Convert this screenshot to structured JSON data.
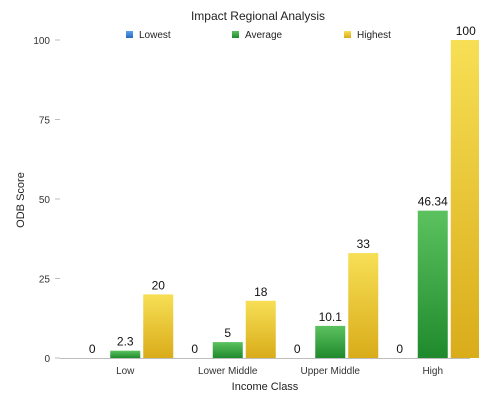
{
  "chart_data": {
    "type": "bar",
    "title": "Impact Regional Analysis",
    "xlabel": "Income Class",
    "ylabel": "ODB Score",
    "categories": [
      "Low",
      "Lower Middle",
      "Upper Middle",
      "High"
    ],
    "series": [
      {
        "name": "Lowest",
        "values": [
          0,
          0,
          0,
          0
        ],
        "color": "#3b7fd6"
      },
      {
        "name": "Average",
        "values": [
          2.3,
          5,
          10.1,
          46.34
        ],
        "color": "#2e9a3a"
      },
      {
        "name": "Highest",
        "values": [
          20,
          18,
          33,
          100
        ],
        "color": "#e8c22c"
      }
    ],
    "data_labels": [
      [
        "0",
        "2.3",
        "20"
      ],
      [
        "0",
        "5",
        "18"
      ],
      [
        "0",
        "10.1",
        "33"
      ],
      [
        "0",
        "46.34",
        "100"
      ]
    ],
    "ylim": [
      0,
      100
    ],
    "yticks": [
      0,
      25,
      50,
      75,
      100
    ],
    "grid": false,
    "legend_position": "top"
  }
}
